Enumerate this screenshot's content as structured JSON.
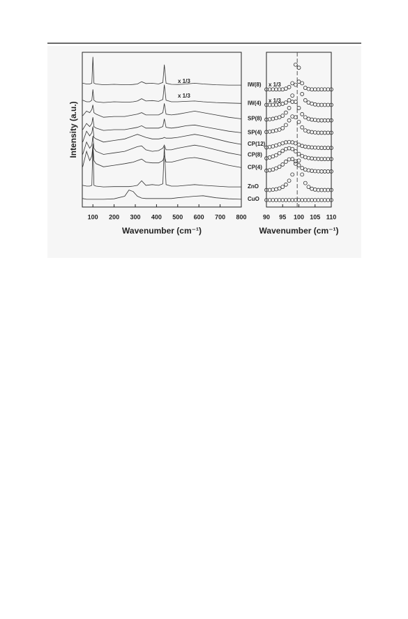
{
  "chart_data": [
    {
      "type": "line",
      "xlabel": "Wavenumber (cm⁻¹)",
      "ylabel": "Intensity (a.u.)",
      "xlim": [
        50,
        800
      ],
      "ylim": [
        0,
        100
      ],
      "xticks": [
        100,
        200,
        300,
        400,
        500,
        600,
        700,
        800
      ],
      "annotations": [
        "x 1/3",
        "x 1/3"
      ],
      "x": [
        52,
        70,
        85,
        95,
        100,
        105,
        115,
        150,
        200,
        250,
        270,
        290,
        310,
        330,
        350,
        380,
        410,
        430,
        437,
        445,
        470,
        500,
        540,
        580,
        620,
        680,
        740,
        800
      ],
      "series": [
        {
          "name": "IW(8)",
          "color": "#333333",
          "values": [
            80,
            79.5,
            79.5,
            80,
            97,
            80,
            79.5,
            79,
            79.3,
            79,
            79,
            79.2,
            79.5,
            81,
            79.8,
            80,
            79.5,
            80.5,
            92,
            80,
            79.3,
            79.2,
            79.5,
            80,
            79.5,
            79,
            78.8,
            78.8
          ]
        },
        {
          "name": "IW(4)",
          "color": "#333333",
          "values": [
            69,
            68,
            68,
            69,
            76,
            69,
            68,
            67.5,
            68,
            67.8,
            67.8,
            68,
            68.5,
            70,
            68.5,
            68.8,
            68.3,
            69.5,
            79,
            69,
            68,
            68,
            68.3,
            68.5,
            68,
            67.5,
            67.2,
            67
          ]
        },
        {
          "name": "SP(8)",
          "color": "#333333",
          "values": [
            59,
            62,
            61,
            63,
            66,
            61,
            60,
            58,
            58.5,
            58.5,
            59,
            59.5,
            60,
            61,
            59.5,
            59.5,
            59.5,
            61,
            67,
            60,
            59.5,
            60,
            61,
            62,
            61,
            59.5,
            58,
            57
          ]
        },
        {
          "name": "SP(4)",
          "color": "#333333",
          "values": [
            50,
            54,
            52,
            54,
            58,
            52,
            51,
            49.5,
            50,
            50,
            50.5,
            51,
            51.5,
            52.5,
            51,
            51,
            51,
            52,
            57,
            51.5,
            51,
            51.5,
            52.5,
            53,
            52,
            50.5,
            49,
            48
          ]
        },
        {
          "name": "CP(12)",
          "color": "#333333",
          "values": [
            42,
            49,
            46,
            48,
            52,
            45,
            44,
            42,
            43,
            44,
            45,
            46,
            47,
            46,
            45,
            44,
            44,
            44.5,
            45,
            44.5,
            44.5,
            45,
            46,
            47,
            46,
            44,
            42,
            40.5
          ]
        },
        {
          "name": "CP(8)",
          "color": "#333333",
          "values": [
            34,
            42,
            38,
            40,
            46,
            38,
            36,
            34,
            35,
            36,
            37,
            38,
            39,
            39.5,
            37,
            36,
            36.5,
            38,
            40,
            37,
            37,
            38,
            39,
            40,
            39,
            37,
            35,
            33.5
          ]
        },
        {
          "name": "CP(4)",
          "color": "#333333",
          "values": [
            26,
            36,
            30,
            33,
            40,
            30,
            28,
            26,
            27,
            28,
            28.5,
            29,
            30,
            31,
            29,
            28.5,
            28.5,
            30,
            33,
            29,
            29,
            30,
            31.5,
            32,
            31,
            29,
            27,
            25.5
          ]
        },
        {
          "name": "ZnO",
          "color": "#333333",
          "values": [
            14,
            13.5,
            13.5,
            14,
            41,
            14,
            13.5,
            13,
            13.2,
            13.2,
            13.2,
            13.5,
            14,
            17,
            14,
            14.5,
            14,
            15,
            39,
            14.5,
            13.5,
            13.5,
            14,
            14.5,
            14,
            13.5,
            13,
            13
          ]
        },
        {
          "name": "CuO",
          "color": "#333333",
          "values": [
            5.5,
            5,
            5,
            5,
            5,
            5,
            5,
            5,
            5.3,
            7,
            11,
            10,
            7,
            5.8,
            5.5,
            5.5,
            5.5,
            5.5,
            5.5,
            5.5,
            5.5,
            6,
            6.5,
            7,
            7.3,
            6,
            5.3,
            5
          ]
        }
      ]
    },
    {
      "type": "scatter",
      "xlabel": "Wavenumber (cm⁻¹)",
      "xlim": [
        90,
        110
      ],
      "ylim": [
        0,
        100
      ],
      "xticks": [
        90,
        95,
        100,
        105,
        110
      ],
      "vline": 99.5,
      "annotations": [
        "x 1/3",
        "x 1/3"
      ],
      "x": [
        90,
        91,
        92,
        93,
        94,
        95,
        96,
        97,
        98,
        99,
        100,
        101,
        102,
        103,
        104,
        105,
        106,
        107,
        108,
        109,
        110
      ],
      "series": [
        {
          "color": "#333333",
          "values": [
            76,
            76,
            76,
            76,
            76,
            76,
            76.5,
            77.5,
            80,
            92,
            90,
            80,
            77,
            76.3,
            76,
            76,
            76,
            76,
            76,
            76,
            76
          ]
        },
        {
          "color": "#333333",
          "values": [
            66,
            66,
            66,
            66,
            66.3,
            66.7,
            67.5,
            69,
            72,
            79,
            81,
            73,
            69,
            67.5,
            66.8,
            66.3,
            66,
            66,
            66,
            66,
            66
          ]
        },
        {
          "color": "#333333",
          "values": [
            56.5,
            56.7,
            57,
            57.5,
            58,
            59,
            61,
            64,
            68,
            68,
            64,
            60,
            58,
            57,
            56.5,
            56.3,
            56,
            56,
            56,
            56,
            56
          ]
        },
        {
          "color": "#333333",
          "values": [
            48.5,
            48.7,
            49,
            49.5,
            50,
            51,
            53,
            56,
            58.5,
            58,
            55,
            51.5,
            49.5,
            48.8,
            48.4,
            48.2,
            48,
            48,
            48,
            48,
            48
          ]
        },
        {
          "color": "#333333",
          "values": [
            38.5,
            38.8,
            39.2,
            39.8,
            40.5,
            41.2,
            41.8,
            42,
            41.8,
            41.2,
            40.3,
            39.5,
            39,
            38.7,
            38.5,
            38.4,
            38.3,
            38.2,
            38.2,
            38.2,
            38.2
          ]
        },
        {
          "color": "#333333",
          "values": [
            31.5,
            32,
            32.7,
            33.5,
            34.8,
            36.3,
            37.5,
            38,
            37.5,
            36,
            34.3,
            33,
            32.2,
            31.7,
            31.4,
            31.2,
            31.1,
            31,
            31,
            31,
            31
          ]
        },
        {
          "color": "#333333",
          "values": [
            23.5,
            23.8,
            24.2,
            25,
            26,
            27.5,
            29.3,
            30.8,
            31,
            29.5,
            27,
            25.2,
            24.2,
            23.7,
            23.4,
            23.2,
            23.1,
            23,
            23,
            23,
            23
          ]
        },
        {
          "color": "#333333",
          "values": [
            11,
            11,
            11.2,
            11.5,
            12,
            13,
            14.5,
            17,
            21,
            28,
            30,
            21,
            15.5,
            13,
            11.8,
            11.3,
            11,
            11,
            11,
            11,
            11
          ]
        },
        {
          "color": "#333333",
          "values": [
            4.5,
            4.5,
            4.5,
            4.5,
            4.5,
            4.5,
            4.5,
            4.5,
            4.5,
            4.5,
            4.5,
            4.5,
            4.5,
            4.5,
            4.5,
            4.5,
            4.5,
            4.5,
            4.5,
            4.5,
            4.5
          ]
        }
      ]
    }
  ]
}
